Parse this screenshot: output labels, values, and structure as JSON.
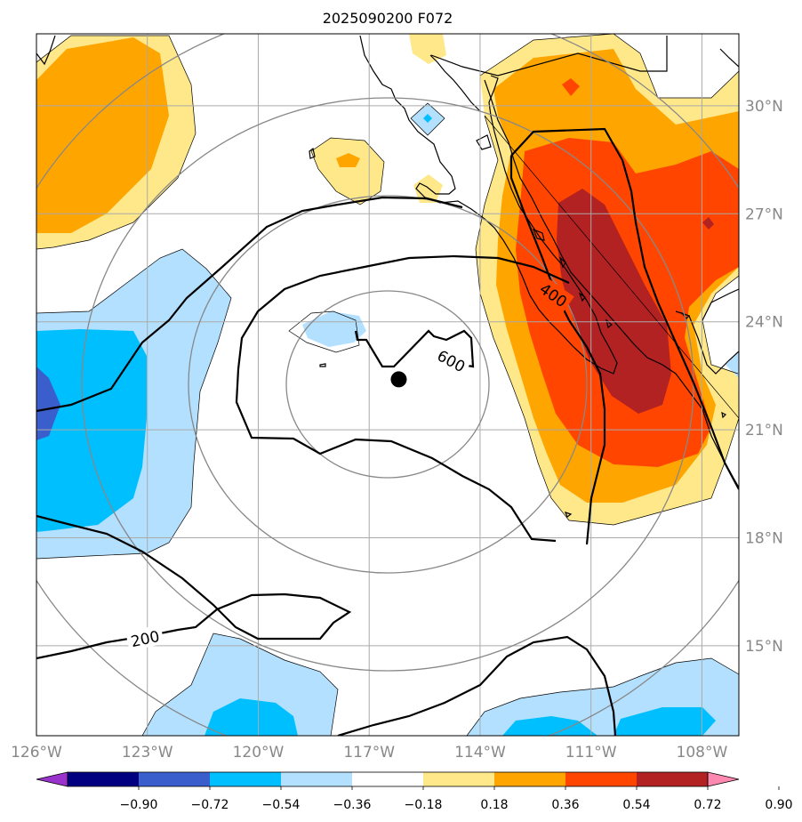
{
  "chart_data": {
    "type": "map",
    "title": "2025090200 F072",
    "lon_range": [
      -126,
      -107
    ],
    "lat_range": [
      12.5,
      32.0
    ],
    "lon_ticks": [
      "126°W",
      "123°W",
      "120°W",
      "117°W",
      "114°W",
      "111°W",
      "108°W"
    ],
    "lat_ticks": [
      "30°N",
      "27°N",
      "24°N",
      "21°N",
      "18°N",
      "15°N"
    ],
    "contour_labels": [
      "600",
      "400",
      "200"
    ],
    "storm_center": {
      "lon": -116.2,
      "lat": 22.4
    },
    "colorbar": {
      "ticks": [
        "−0.90",
        "−0.72",
        "−0.54",
        "−0.36",
        "−0.18",
        "0.18",
        "0.36",
        "0.54",
        "0.72",
        "0.90"
      ],
      "colors": [
        "#9933cc",
        "#000080",
        "#3a5fcd",
        "#00bfff",
        "#b3e0ff",
        "#ffffff",
        "#ffe88a",
        "#ffa500",
        "#ff4500",
        "#b22222",
        "#ff88b0"
      ]
    }
  },
  "colors": {
    "land_line": "#000000",
    "grid": "#aaaaaa",
    "range_ring": "#888888",
    "contour": "#000000"
  }
}
